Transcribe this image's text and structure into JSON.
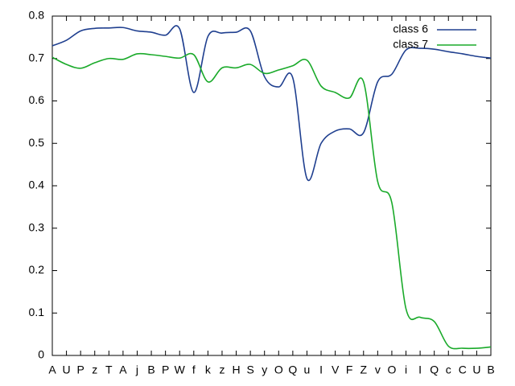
{
  "chart_data": {
    "type": "line",
    "categories": [
      "A",
      "U",
      "P",
      "z",
      "T",
      "A",
      "j",
      "B",
      "P",
      "W",
      "f",
      "k",
      "z",
      "H",
      "S",
      "y",
      "O",
      "Q",
      "u",
      "I",
      "V",
      "F",
      "Z",
      "v",
      "O",
      "i",
      "I",
      "Q",
      "c",
      "C",
      "U",
      "B"
    ],
    "series": [
      {
        "name": "class 6",
        "color": "#1f3f8f",
        "values": [
          0.73,
          0.743,
          0.765,
          0.771,
          0.772,
          0.773,
          0.765,
          0.762,
          0.755,
          0.77,
          0.62,
          0.752,
          0.76,
          0.762,
          0.765,
          0.657,
          0.633,
          0.654,
          0.417,
          0.5,
          0.529,
          0.534,
          0.525,
          0.645,
          0.663,
          0.72,
          0.724,
          0.722,
          0.716,
          0.711,
          0.705,
          0.701
        ]
      },
      {
        "name": "class 7",
        "color": "#1aaa2a",
        "values": [
          0.703,
          0.686,
          0.677,
          0.69,
          0.7,
          0.698,
          0.711,
          0.709,
          0.705,
          0.701,
          0.709,
          0.645,
          0.678,
          0.678,
          0.686,
          0.665,
          0.673,
          0.683,
          0.696,
          0.635,
          0.62,
          0.607,
          0.645,
          0.41,
          0.36,
          0.11,
          0.09,
          0.08,
          0.022,
          0.017,
          0.017,
          0.02
        ]
      }
    ],
    "ylim": [
      0,
      0.8
    ],
    "yticks": [
      0,
      0.1,
      0.2,
      0.3,
      0.4,
      0.5,
      0.6,
      0.7,
      0.8
    ],
    "grid": false,
    "legend": "top right"
  }
}
